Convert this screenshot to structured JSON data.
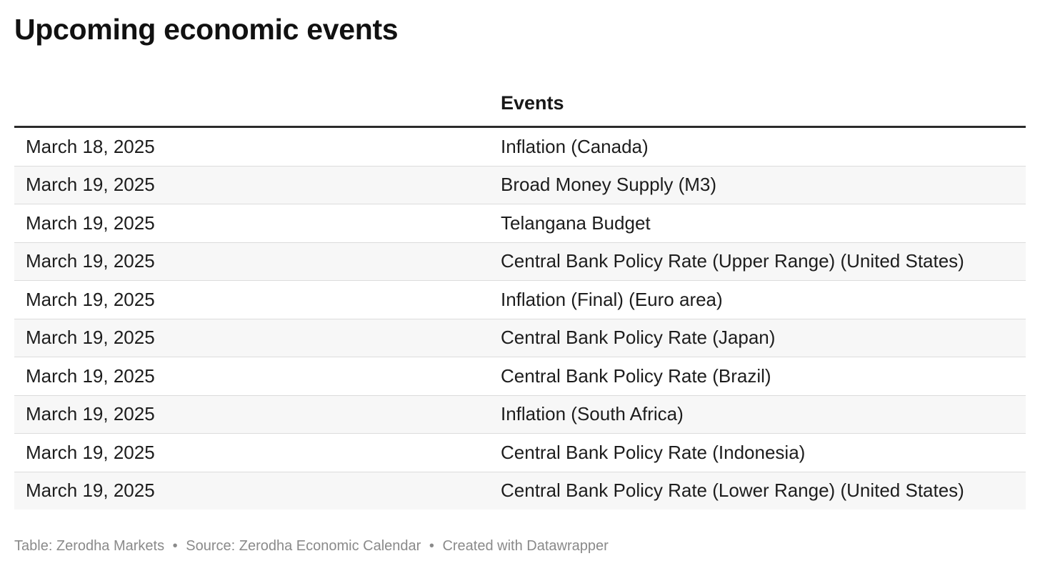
{
  "title": "Upcoming economic events",
  "table": {
    "headers": [
      "",
      "Events"
    ],
    "rows": [
      [
        "March 18, 2025",
        "Inflation (Canada)"
      ],
      [
        "March 19, 2025",
        "Broad Money Supply (M3)"
      ],
      [
        "March 19, 2025",
        "Telangana Budget"
      ],
      [
        "March 19, 2025",
        "Central Bank Policy Rate (Upper Range) (United States)"
      ],
      [
        "March 19, 2025",
        "Inflation (Final) (Euro area)"
      ],
      [
        "March 19, 2025",
        "Central Bank Policy Rate (Japan)"
      ],
      [
        "March 19, 2025",
        "Central Bank Policy Rate (Brazil)"
      ],
      [
        "March 19, 2025",
        "Inflation (South Africa)"
      ],
      [
        "March 19, 2025",
        "Central Bank Policy Rate (Indonesia)"
      ],
      [
        "March 19, 2025",
        "Central Bank Policy Rate (Lower Range) (United States)"
      ]
    ]
  },
  "footer": {
    "table_credit": "Table: Zerodha Markets",
    "source": "Source: Zerodha Economic Calendar",
    "created_with": "Created with Datawrapper",
    "separator": "•"
  },
  "colors": {
    "title": "#111111",
    "text": "#1d1d1d",
    "header_rule": "#2b2b2b",
    "row_divider": "#dcdcdc",
    "row_stripe": "#f7f7f7",
    "footer_text": "#8a8a8a"
  }
}
